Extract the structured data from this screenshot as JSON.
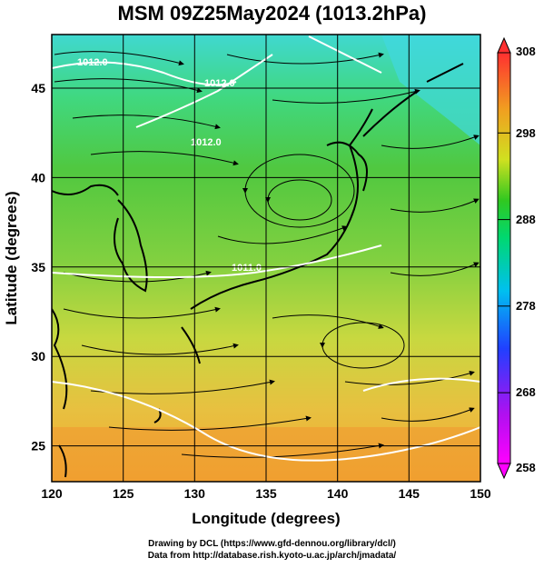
{
  "title": "MSM 09Z25May2024 (1013.2hPa)",
  "x_axis": {
    "label": "Longitude (degrees)",
    "ticks": [
      "120",
      "125",
      "130",
      "135",
      "140",
      "145",
      "150"
    ]
  },
  "y_axis": {
    "label": "Latitude  (degrees)",
    "ticks": [
      "25",
      "30",
      "35",
      "40",
      "45"
    ]
  },
  "colorbar": {
    "ticks": [
      "308",
      "298",
      "288",
      "278",
      "268",
      "258"
    ],
    "colors": [
      "#ff00ff",
      "#3030ff",
      "#00c0ff",
      "#00e090",
      "#30d020",
      "#d0e020",
      "#f0a020",
      "#ff5030"
    ]
  },
  "contour_labels": [
    "1012.0",
    "1012.0",
    "1012.0",
    "1011.0"
  ],
  "credits": {
    "line1": "Drawing by DCL (https://www.gfd-dennou.org/library/dcl/)",
    "line2": "Data from http://database.rish.kyoto-u.ac.jp/arch/jmadata/"
  },
  "map_extent": {
    "lon": [
      120,
      150
    ],
    "lat": [
      22.5,
      47.5
    ]
  }
}
